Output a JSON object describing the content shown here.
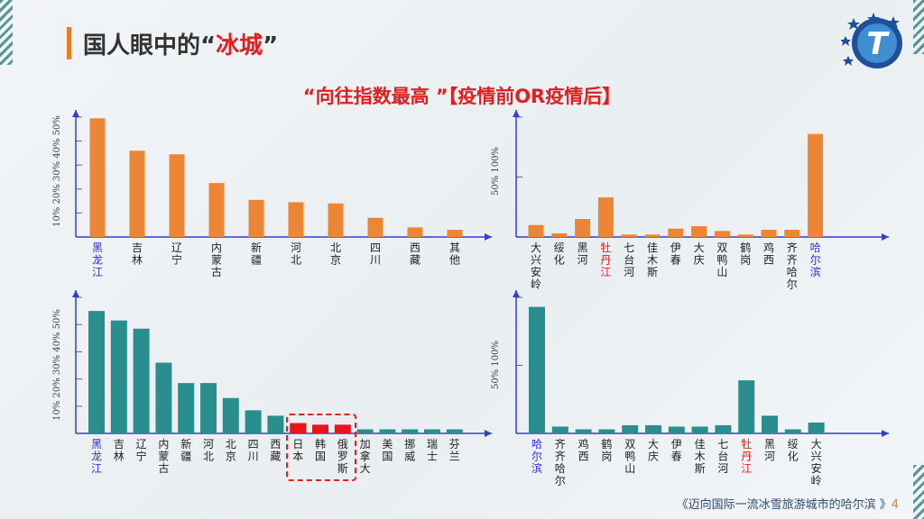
{
  "page": {
    "title_prefix": "国人眼中的“",
    "title_highlight": "冰城",
    "title_suffix": "”",
    "subtitle": "“向往指数最高 ”【疫情前OR疫情后】",
    "footer_text": "《迈向国际一流冰雪旅游城市的哈尔滨 》",
    "page_number": "4"
  },
  "colors": {
    "orange": "#ec8634",
    "teal": "#2a8e8e",
    "red_bar": "#e8151b",
    "blue_label": "#2f2fe0",
    "red_label": "#e02020",
    "axis": "#2f3fd0"
  },
  "chart_data": [
    {
      "type": "bar",
      "categories": [
        "黑龙江",
        "吉林",
        "辽宁",
        "内蒙古",
        "新疆",
        "河北",
        "北京",
        "四川",
        "西藏",
        "其他"
      ],
      "values": [
        49.5,
        36,
        34.5,
        22.5,
        15.5,
        14.5,
        14,
        8,
        4,
        3
      ],
      "y_ticks": [
        "10%",
        "20%",
        "30%",
        "40%",
        "50%"
      ],
      "ylim": [
        0,
        50
      ],
      "color": "orange",
      "highlight_blue": [
        "黑龙江"
      ],
      "highlight_red": []
    },
    {
      "type": "bar",
      "categories": [
        "大兴安岭",
        "绥化",
        "黑河",
        "牡丹江",
        "七台河",
        "佳木斯",
        "伊春",
        "大庆",
        "双鸭山",
        "鹤岗",
        "鸡西",
        "齐齐哈尔",
        "哈尔滨"
      ],
      "values": [
        10,
        3,
        15,
        33,
        2,
        2,
        7,
        9,
        5,
        2,
        6,
        6,
        86
      ],
      "y_ticks": [
        "50%",
        "100%"
      ],
      "ylim": [
        0,
        100
      ],
      "color": "orange",
      "highlight_blue": [
        "哈尔滨"
      ],
      "highlight_red": [
        "牡丹江"
      ]
    },
    {
      "type": "bar",
      "categories": [
        "黑龙江",
        "吉林",
        "辽宁",
        "内蒙古",
        "新疆",
        "河北",
        "北京",
        "四川",
        "西藏",
        "日本",
        "韩国",
        "俄罗斯",
        "加拿大",
        "美国",
        "挪威",
        "瑞士",
        "芬兰"
      ],
      "values": [
        45,
        41.5,
        38.5,
        26,
        18.5,
        18.5,
        13,
        8.5,
        6.5,
        3.8,
        3.2,
        3.2,
        1.5,
        1.5,
        1.5,
        1.5,
        1.5
      ],
      "y_ticks": [
        "10%",
        "20%",
        "30%",
        "40%",
        "50%"
      ],
      "ylim": [
        0,
        50
      ],
      "color": "teal",
      "red_bars": [
        "日本",
        "韩国",
        "俄罗斯"
      ],
      "highlight_blue": [
        "黑龙江"
      ],
      "highlight_red": []
    },
    {
      "type": "bar",
      "categories": [
        "哈尔滨",
        "齐齐哈尔",
        "鸡西",
        "鹤岗",
        "双鸭山",
        "大庆",
        "伊春",
        "佳木斯",
        "七台河",
        "牡丹江",
        "黑河",
        "绥化",
        "大兴安岭"
      ],
      "values": [
        93,
        5,
        3,
        3,
        6,
        6,
        5,
        5,
        6,
        39,
        13,
        3,
        8
      ],
      "y_ticks": [
        "50%",
        "100%"
      ],
      "ylim": [
        0,
        100
      ],
      "color": "teal",
      "highlight_blue": [
        "哈尔滨"
      ],
      "highlight_red": [
        "牡丹江"
      ]
    }
  ]
}
